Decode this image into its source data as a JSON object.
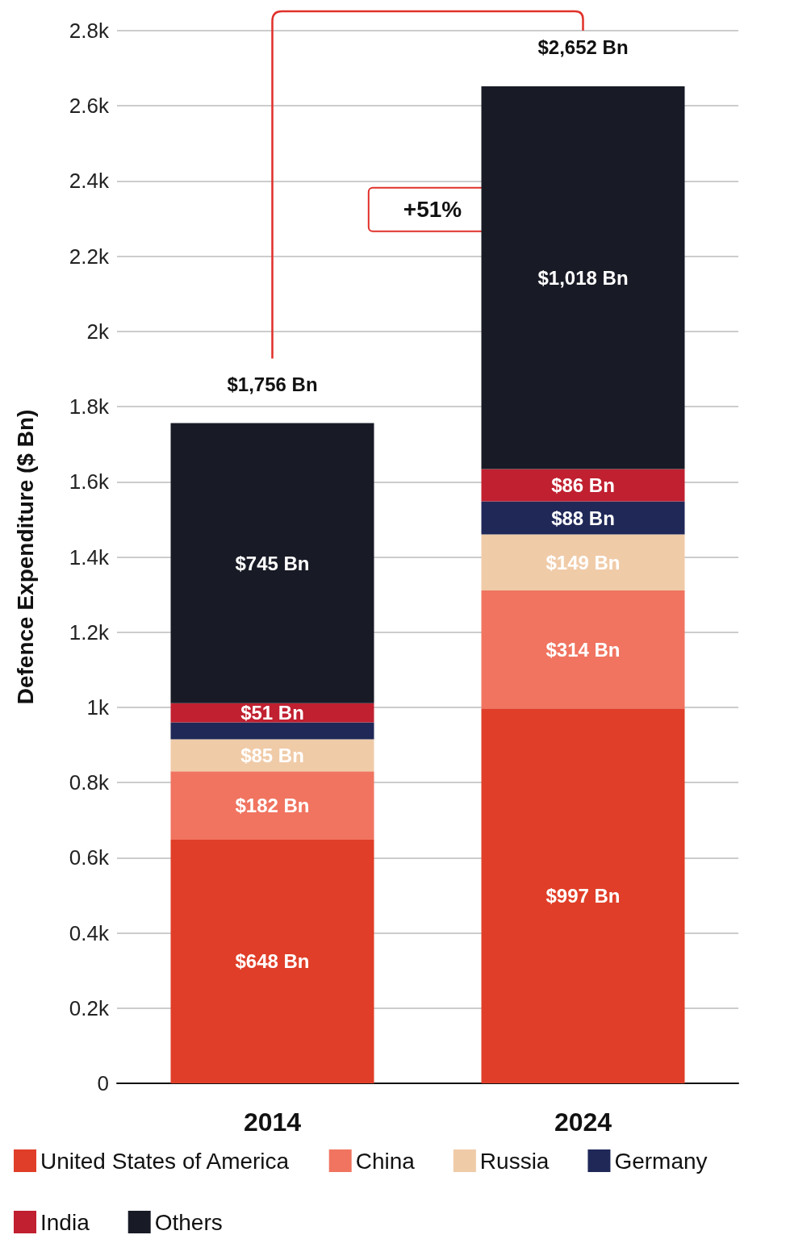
{
  "chart_data": {
    "type": "bar",
    "stacked": true,
    "ylabel": "Defence Expenditure ($ Bn)",
    "categories": [
      "2014",
      "2024"
    ],
    "series": [
      {
        "name": "United States of America",
        "color": "#e03e28",
        "values": [
          648,
          997
        ],
        "value_labels": [
          "$648 Bn",
          "$997 Bn"
        ]
      },
      {
        "name": "China",
        "color": "#f07460",
        "values": [
          182,
          314
        ],
        "value_labels": [
          "$182 Bn",
          "$314 Bn"
        ]
      },
      {
        "name": "Russia",
        "color": "#f0cba8",
        "values": [
          85,
          149
        ],
        "value_labels": [
          "$85 Bn",
          "$149 Bn"
        ]
      },
      {
        "name": "Germany",
        "color": "#1f2857",
        "values": [
          45,
          88
        ],
        "value_labels": [
          null,
          "$88 Bn"
        ]
      },
      {
        "name": "India",
        "color": "#c02030",
        "values": [
          51,
          86
        ],
        "value_labels": [
          "$51 Bn",
          "$86 Bn"
        ]
      },
      {
        "name": "Others",
        "color": "#181b26",
        "values": [
          745,
          1018
        ],
        "value_labels": [
          "$745 Bn",
          "$1,018 Bn"
        ]
      }
    ],
    "totals": [
      "$1,756 Bn",
      "$2,652 Bn"
    ],
    "annotations": [
      "+51%"
    ],
    "ylim": [
      0,
      2800
    ],
    "yticks": [
      0,
      {
        "value": 200,
        "label": "0.2k"
      },
      {
        "value": 400,
        "label": "0.4k"
      },
      {
        "value": 600,
        "label": "0.6k"
      },
      {
        "value": 800,
        "label": "0.8k"
      },
      {
        "value": 1000,
        "label": "1k"
      },
      {
        "value": 1200,
        "label": "1.2k"
      },
      {
        "value": 1400,
        "label": "1.4k"
      },
      {
        "value": 1600,
        "label": "1.6k"
      },
      {
        "value": 1800,
        "label": "1.8k"
      },
      {
        "value": 2000,
        "label": "2k"
      },
      {
        "value": 2200,
        "label": "2.2k"
      },
      {
        "value": 2400,
        "label": "2.4k"
      },
      {
        "value": 2600,
        "label": "2.6k"
      },
      {
        "value": 2800,
        "label": "2.8k"
      }
    ],
    "grid": "y",
    "legend": "bottom"
  }
}
